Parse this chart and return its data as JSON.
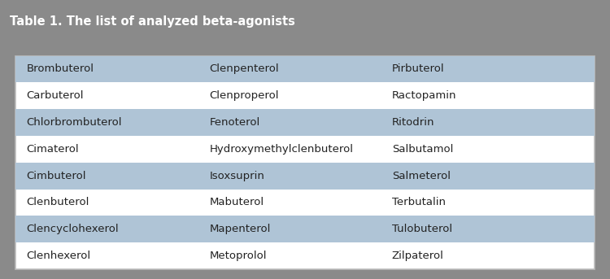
{
  "title": "Table 1. The list of analyzed beta-agonists",
  "title_bg_color": "#8a8a8a",
  "title_text_color": "#ffffff",
  "title_fontsize": 10.5,
  "outer_bg_color": "#8a8a8a",
  "table_bg_color": "#ffffff",
  "table_border_color": "#bbbbbb",
  "row_highlight_color": "#afc4d6",
  "row_normal_color": "#ffffff",
  "cell_text_color": "#222222",
  "cell_fontsize": 9.5,
  "columns": [
    [
      "Brombuterol",
      "Carbuterol",
      "Chlorbrombuterol",
      "Cimaterol",
      "Cimbuterol",
      "Clenbuterol",
      "Clencyclohexerol",
      "Clenhexerol"
    ],
    [
      "Clenpenterol",
      "Clenproperol",
      "Fenoterol",
      "Hydroxymethylclenbuterol",
      "Isoxsuprin",
      "Mabuterol",
      "Mapenterol",
      "Metoprolol"
    ],
    [
      "Pirbuterol",
      "Ractopamin",
      "Ritodrin",
      "Salbutamol",
      "Salmeterol",
      "Terbutalin",
      "Tulobuterol",
      "Zilpaterol"
    ]
  ],
  "highlighted_rows": [
    0,
    2,
    4,
    6
  ],
  "n_rows": 8,
  "fig_width": 7.5,
  "fig_height": 3.43,
  "dpi": 100
}
